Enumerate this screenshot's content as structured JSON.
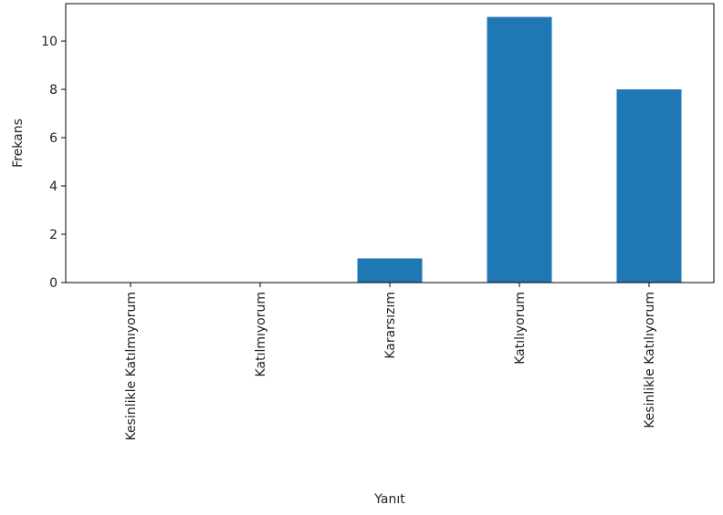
{
  "chart_data": {
    "type": "bar",
    "categories": [
      "Kesinlikle Katılmıyorum",
      "Katılmıyorum",
      "Kararsızım",
      "Katılıyorum",
      "Kesinlikle Katılıyorum"
    ],
    "values": [
      0,
      0,
      1,
      11,
      8
    ],
    "title": "",
    "xlabel": "Yanıt",
    "ylabel": "Frekans",
    "ylim": [
      0,
      11.55
    ],
    "yticks": [
      0,
      2,
      4,
      6,
      8,
      10
    ],
    "grid": false,
    "bar_color": "#1f77b4"
  }
}
